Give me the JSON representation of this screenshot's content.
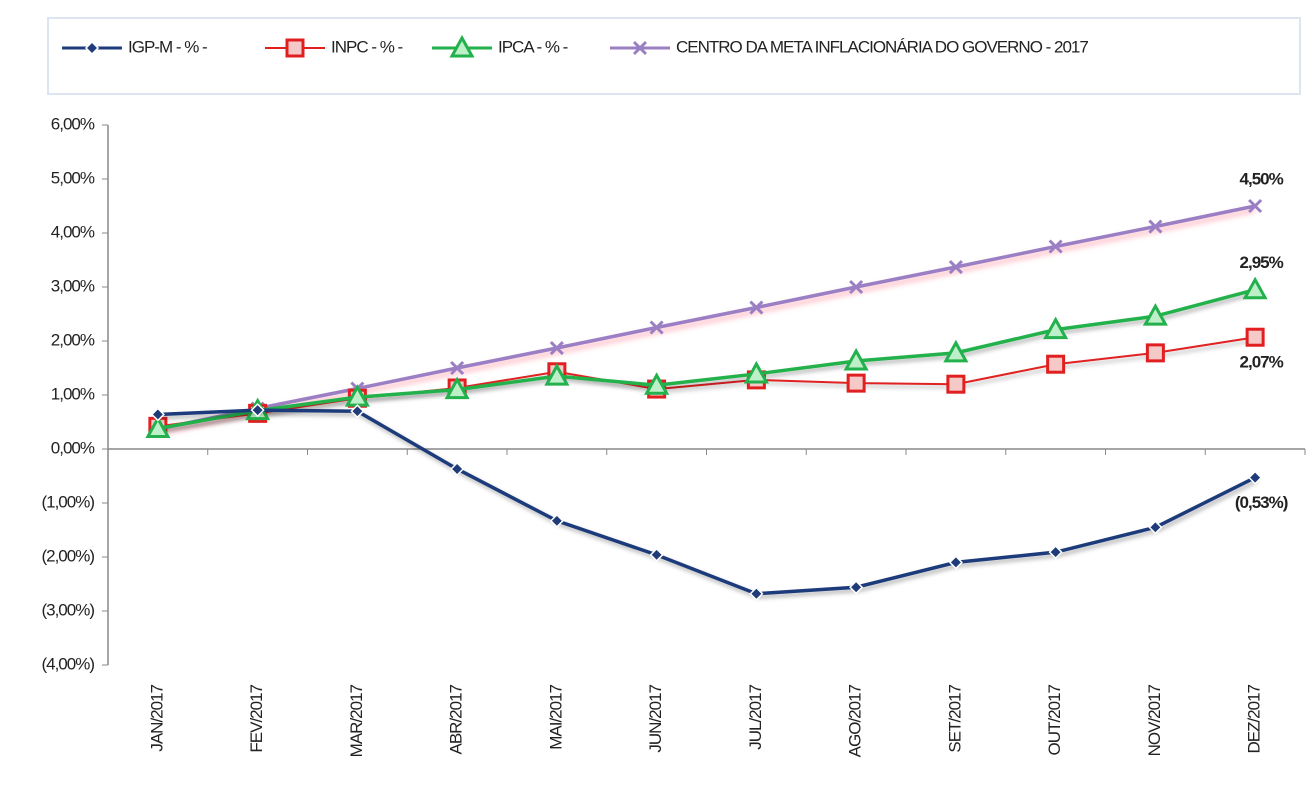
{
  "chart_data": {
    "type": "line",
    "categories": [
      "JAN/2017",
      "FEV/2017",
      "MAR/2017",
      "ABR/2017",
      "MAI/2017",
      "JUN/2017",
      "JUL/2017",
      "AGO/2017",
      "SET/2017",
      "OUT/2017",
      "NOV/2017",
      "DEZ/2017"
    ],
    "series": [
      {
        "name": "IGP-M - % -",
        "color": "#1f3b7a",
        "marker": "diamond",
        "values": [
          0.64,
          0.72,
          0.7,
          -0.37,
          -1.33,
          -1.96,
          -2.68,
          -2.56,
          -2.1,
          -1.91,
          -1.45,
          -0.53
        ],
        "value_labels": [
          null,
          null,
          null,
          null,
          null,
          null,
          null,
          null,
          null,
          null,
          null,
          "(0,53%)"
        ]
      },
      {
        "name": "INPC - % -",
        "color": "#e02020",
        "marker": "square",
        "values": [
          0.42,
          0.66,
          0.94,
          1.13,
          1.43,
          1.11,
          1.28,
          1.22,
          1.2,
          1.57,
          1.78,
          2.07
        ],
        "value_labels": [
          null,
          null,
          null,
          null,
          null,
          null,
          null,
          null,
          null,
          null,
          null,
          "2,07%"
        ]
      },
      {
        "name": "IPCA - % -",
        "color": "#22b14c",
        "marker": "triangle",
        "values": [
          0.38,
          0.71,
          0.96,
          1.1,
          1.35,
          1.18,
          1.39,
          1.63,
          1.78,
          2.21,
          2.46,
          2.95
        ],
        "value_labels": [
          null,
          null,
          null,
          null,
          null,
          null,
          null,
          null,
          null,
          null,
          null,
          "2,95%"
        ]
      },
      {
        "name": "CENTRO DA META INFLACIONÁRIA DO GOVERNO - 2017",
        "color": "#9b7fc4",
        "marker": "x",
        "values": [
          0.37,
          0.75,
          1.12,
          1.5,
          1.87,
          2.25,
          2.62,
          3.0,
          3.37,
          3.75,
          4.12,
          4.5
        ],
        "value_labels": [
          null,
          null,
          null,
          null,
          null,
          null,
          null,
          null,
          null,
          null,
          null,
          "4,50%"
        ]
      }
    ],
    "ylim": [
      -4,
      6
    ],
    "yticks": [
      {
        "value": 6,
        "label": "6,00%"
      },
      {
        "value": 5,
        "label": "5,00%"
      },
      {
        "value": 4,
        "label": "4,00%"
      },
      {
        "value": 3,
        "label": "3,00%"
      },
      {
        "value": 2,
        "label": "2,00%"
      },
      {
        "value": 1,
        "label": "1,00%"
      },
      {
        "value": 0,
        "label": "0,00%"
      },
      {
        "value": -1,
        "label": "(1,00%)"
      },
      {
        "value": -2,
        "label": "(2,00%)"
      },
      {
        "value": -3,
        "label": "(3,00%)"
      },
      {
        "value": -4,
        "label": "(4,00%)"
      }
    ],
    "legend": "top"
  }
}
